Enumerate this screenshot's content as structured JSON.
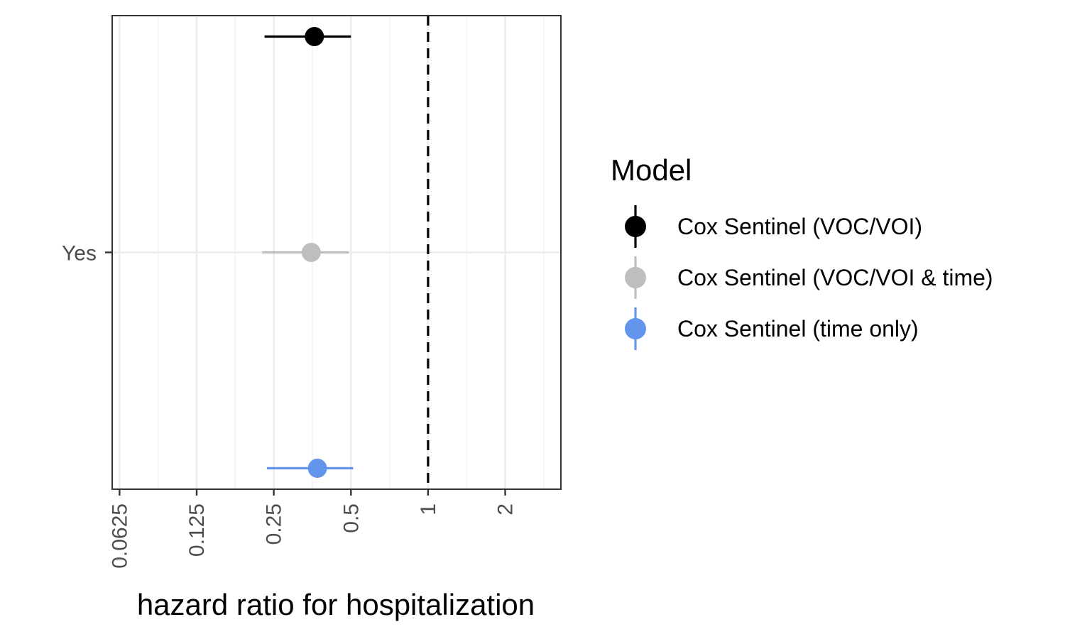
{
  "chart_data": {
    "type": "scatter",
    "subtype": "forest-plot",
    "x_scale": "log2",
    "xlim": [
      0.0585,
      3.3
    ],
    "x_ticks": [
      0.0625,
      0.125,
      0.25,
      0.5,
      1,
      2
    ],
    "x_tick_labels": [
      "0.0625",
      "0.125",
      "0.25",
      "0.5",
      "1",
      "2"
    ],
    "xlabel": "hazard ratio for hospitalization",
    "categories": [
      "Yes"
    ],
    "reference_line": {
      "x": 1,
      "style": "dashed",
      "color": "#000000"
    },
    "grid": true,
    "legend": {
      "title": "Model",
      "position": "right"
    },
    "series": [
      {
        "name": "Cox Sentinel (VOC/VOI)",
        "category": "Yes",
        "estimate": 0.36,
        "lower": 0.23,
        "upper": 0.5,
        "color": "#000000"
      },
      {
        "name": "Cox Sentinel (VOC/VOI & time)",
        "category": "Yes",
        "estimate": 0.35,
        "lower": 0.225,
        "upper": 0.49,
        "color": "#bebebe"
      },
      {
        "name": "Cox Sentinel (time only)",
        "category": "Yes",
        "estimate": 0.37,
        "lower": 0.235,
        "upper": 0.51,
        "color": "#6495ed"
      }
    ]
  }
}
